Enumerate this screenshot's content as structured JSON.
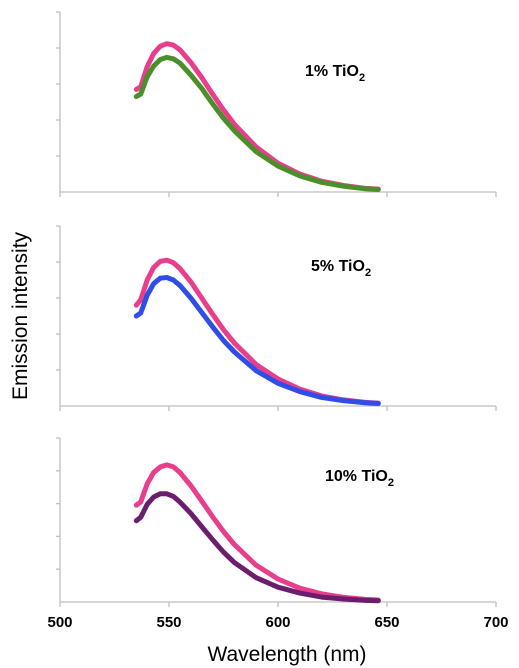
{
  "chart_data": {
    "type": "line",
    "xlabel": "Wavelength (nm)",
    "ylabel": "Emission intensity",
    "xlim": [
      500,
      700
    ],
    "x_ticks": [
      "500",
      "550",
      "600",
      "650",
      "700"
    ],
    "shared_x_axis": true,
    "y_tick_labels_shown": false,
    "grid": false,
    "panels": [
      {
        "label_main": "1% TiO",
        "label_sub": "2",
        "ylim": [
          0,
          5
        ],
        "y_tick_count": 5,
        "series": [
          {
            "color": "#e83e8c",
            "x": [
              535,
              537,
              540,
              543,
              546,
              549,
              552,
              555,
              560,
              565,
              570,
              575,
              580,
              590,
              600,
              610,
              620,
              630,
              640,
              646
            ],
            "y": [
              2.85,
              2.92,
              3.48,
              3.85,
              4.05,
              4.12,
              4.08,
              3.95,
              3.6,
              3.18,
              2.72,
              2.28,
              1.88,
              1.25,
              0.8,
              0.5,
              0.3,
              0.18,
              0.1,
              0.08
            ]
          },
          {
            "color": "#4a8f2a",
            "x": [
              535,
              537,
              540,
              543,
              546,
              549,
              552,
              555,
              560,
              565,
              570,
              575,
              580,
              590,
              600,
              610,
              620,
              630,
              640,
              646
            ],
            "y": [
              2.65,
              2.72,
              3.2,
              3.5,
              3.68,
              3.74,
              3.7,
              3.58,
              3.25,
              2.88,
              2.45,
              2.05,
              1.7,
              1.12,
              0.72,
              0.45,
              0.27,
              0.16,
              0.09,
              0.07
            ]
          }
        ]
      },
      {
        "label_main": "5% TiO",
        "label_sub": "2",
        "ylim": [
          0,
          5
        ],
        "y_tick_count": 5,
        "series": [
          {
            "color": "#e83e8c",
            "x": [
              535,
              537,
              540,
              543,
              546,
              549,
              552,
              555,
              560,
              565,
              570,
              575,
              580,
              590,
              600,
              610,
              620,
              630,
              640,
              646
            ],
            "y": [
              2.8,
              2.95,
              3.5,
              3.85,
              4.02,
              4.05,
              3.98,
              3.82,
              3.45,
              3.0,
              2.55,
              2.12,
              1.75,
              1.15,
              0.75,
              0.47,
              0.28,
              0.17,
              0.1,
              0.08
            ]
          },
          {
            "color": "#2f4ee8",
            "x": [
              535,
              537,
              540,
              543,
              546,
              549,
              552,
              555,
              560,
              565,
              570,
              575,
              580,
              590,
              600,
              610,
              620,
              630,
              640,
              646
            ],
            "y": [
              2.5,
              2.58,
              3.08,
              3.4,
              3.55,
              3.57,
              3.5,
              3.35,
              3.0,
              2.6,
              2.2,
              1.82,
              1.5,
              0.98,
              0.63,
              0.4,
              0.24,
              0.15,
              0.09,
              0.07
            ]
          }
        ]
      },
      {
        "label_main": "10% TiO",
        "label_sub": "2",
        "ylim": [
          0,
          5
        ],
        "y_tick_count": 5,
        "series": [
          {
            "color": "#e83e8c",
            "x": [
              535,
              537,
              540,
              543,
              546,
              549,
              552,
              555,
              560,
              565,
              570,
              575,
              580,
              590,
              600,
              610,
              620,
              630,
              640,
              646
            ],
            "y": [
              2.95,
              3.05,
              3.6,
              3.95,
              4.12,
              4.18,
              4.12,
              3.95,
              3.55,
              3.08,
              2.6,
              2.15,
              1.75,
              1.12,
              0.7,
              0.42,
              0.25,
              0.14,
              0.08,
              0.06
            ]
          },
          {
            "color": "#6b1e6e",
            "x": [
              535,
              537,
              540,
              543,
              546,
              549,
              552,
              555,
              560,
              565,
              570,
              575,
              580,
              590,
              600,
              610,
              620,
              630,
              640,
              646
            ],
            "y": [
              2.48,
              2.58,
              2.98,
              3.2,
              3.3,
              3.3,
              3.22,
              3.05,
              2.7,
              2.3,
              1.9,
              1.52,
              1.2,
              0.74,
              0.45,
              0.27,
              0.15,
              0.09,
              0.05,
              0.04
            ]
          }
        ]
      }
    ]
  }
}
